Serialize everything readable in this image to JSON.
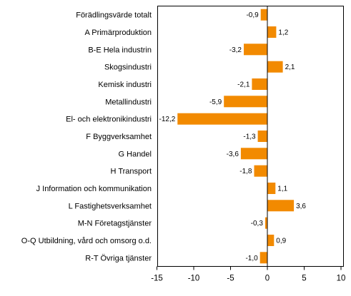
{
  "chart_data": {
    "type": "bar",
    "orientation": "horizontal",
    "categories": [
      "Förädlingsvärde totalt",
      "A Primärproduktion",
      "B-E Hela industrin",
      "Skogsindustri",
      "Kemisk industri",
      "Metallindustri",
      "El- och elektronikindustri",
      "F Byggverksamhet",
      "G Handel",
      "H Transport",
      "J Information och kommunikation",
      "L Fastighetsverksamhet",
      "M-N Företagstjänster",
      "O-Q Utbildning, vård och omsorg o.d.",
      "R-T Övriga tjänster"
    ],
    "values": [
      -0.9,
      1.2,
      -3.2,
      2.1,
      -2.1,
      -5.9,
      -12.2,
      -1.3,
      -3.6,
      -1.8,
      1.1,
      3.6,
      -0.3,
      0.9,
      -1.0
    ],
    "value_labels": [
      "-0,9",
      "1,2",
      "-3,2",
      "2,1",
      "-2,1",
      "-5,9",
      "-12,2",
      "-1,3",
      "-3,6",
      "-1,8",
      "1,1",
      "3,6",
      "-0,3",
      "0,9",
      "-1,0"
    ],
    "xlim": [
      -15,
      10
    ],
    "xticks": [
      -15,
      -10,
      -5,
      0,
      5,
      10
    ],
    "xtick_labels": [
      "-15",
      "-10",
      "-5",
      "0",
      "5",
      "10"
    ],
    "title": "",
    "xlabel": "",
    "ylabel": "",
    "grid": false,
    "legend": "none",
    "bar_color": "#f28a00",
    "axis_color": "#000000"
  }
}
